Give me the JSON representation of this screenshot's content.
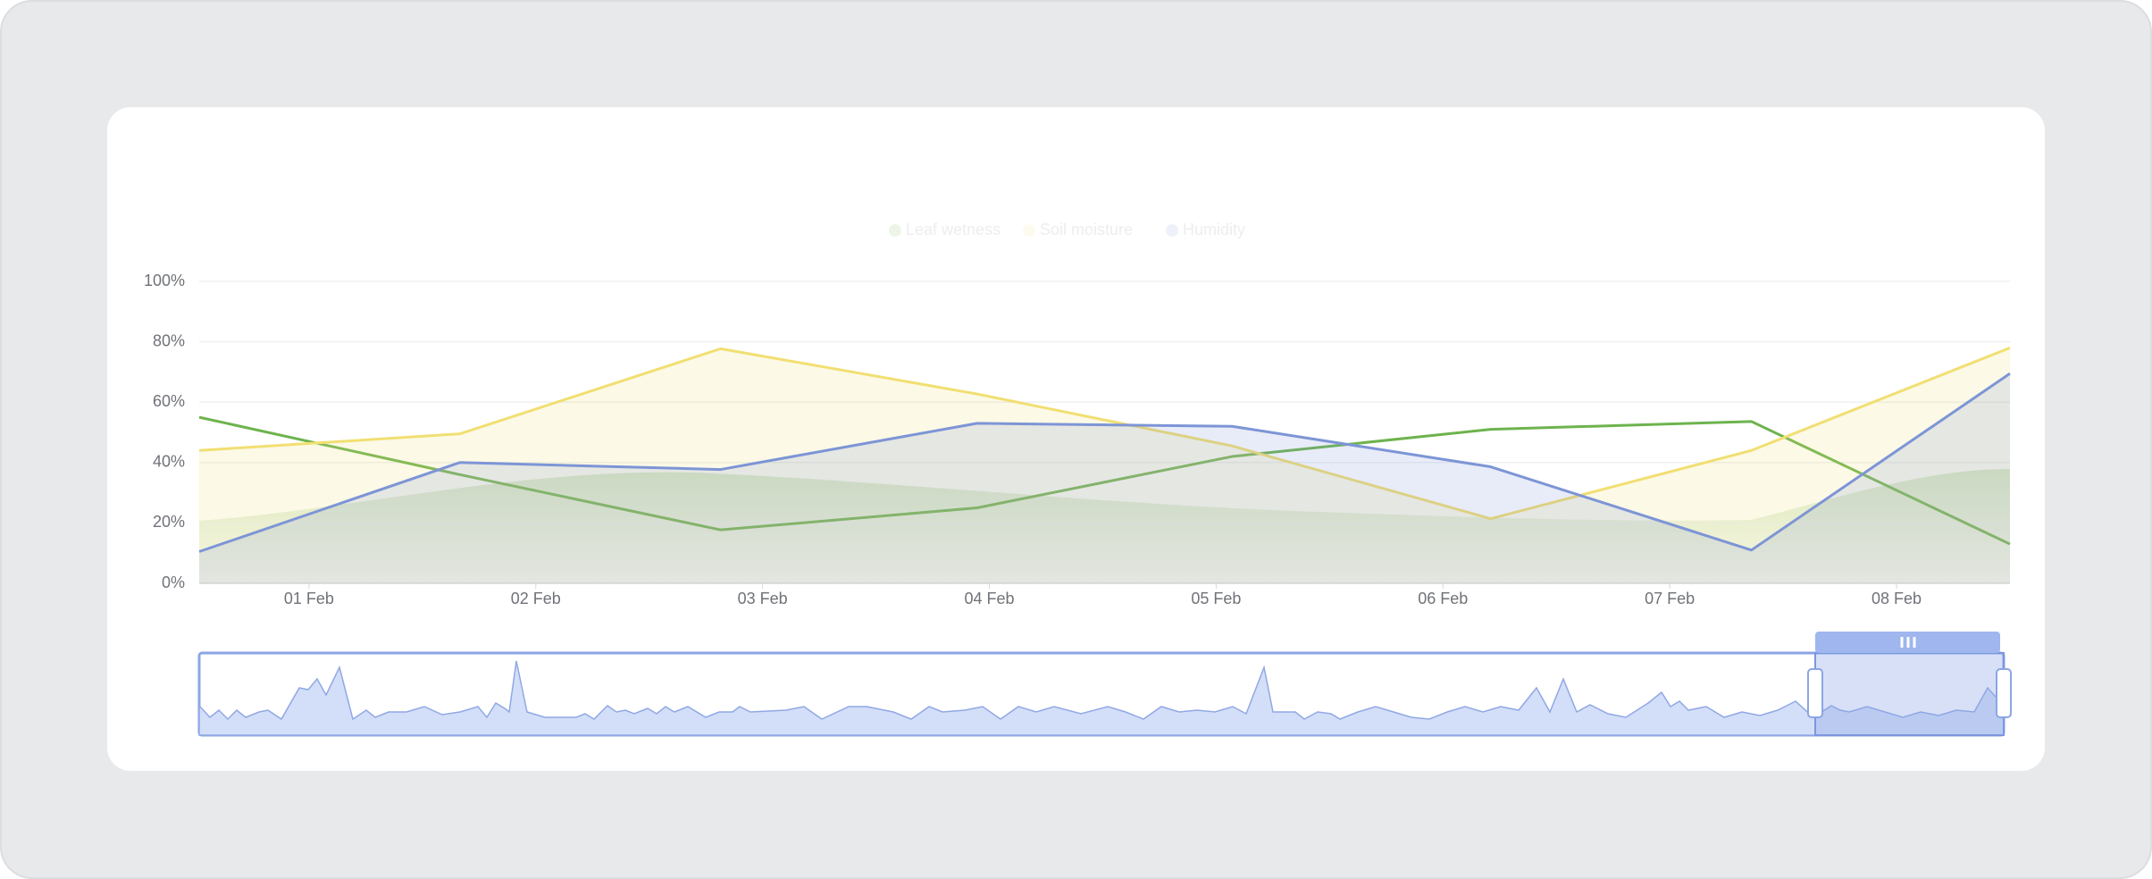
{
  "chart_data": {
    "type": "line",
    "x": [
      0.516,
      1.665,
      2.815,
      3.946,
      5.07,
      6.21,
      7.36,
      8.5
    ],
    "xlim": [
      0.516,
      8.5
    ],
    "xticks": [
      {
        "value": 1,
        "label": "01 Feb"
      },
      {
        "value": 2,
        "label": "02 Feb"
      },
      {
        "value": 3,
        "label": "03 Feb"
      },
      {
        "value": 4,
        "label": "04 Feb"
      },
      {
        "value": 5,
        "label": "05 Feb"
      },
      {
        "value": 6,
        "label": "06 Feb"
      },
      {
        "value": 7,
        "label": "07 Feb"
      },
      {
        "value": 8,
        "label": "08 Feb"
      }
    ],
    "ylim": [
      0,
      100
    ],
    "yticks": [
      {
        "value": 0,
        "label": "0%"
      },
      {
        "value": 20,
        "label": "20%"
      },
      {
        "value": 40,
        "label": "40%"
      },
      {
        "value": 60,
        "label": "60%"
      },
      {
        "value": 80,
        "label": "80%"
      },
      {
        "value": 100,
        "label": "100%"
      }
    ],
    "grid": true,
    "legend": "top",
    "series": [
      {
        "name": "Leaf wetness",
        "color": "#6db34d",
        "values": [
          55,
          36,
          17.7,
          25,
          42,
          51,
          53.6,
          13
        ]
      },
      {
        "name": "Soil moisture",
        "color": "#f1df72",
        "values": [
          44,
          49.5,
          77.7,
          62.7,
          45.5,
          21.4,
          44,
          78
        ]
      },
      {
        "name": "Humidity",
        "color": "#7d95d6",
        "values": [
          10.5,
          40,
          37.7,
          53,
          52,
          38.6,
          11,
          69.5
        ]
      }
    ]
  }
}
